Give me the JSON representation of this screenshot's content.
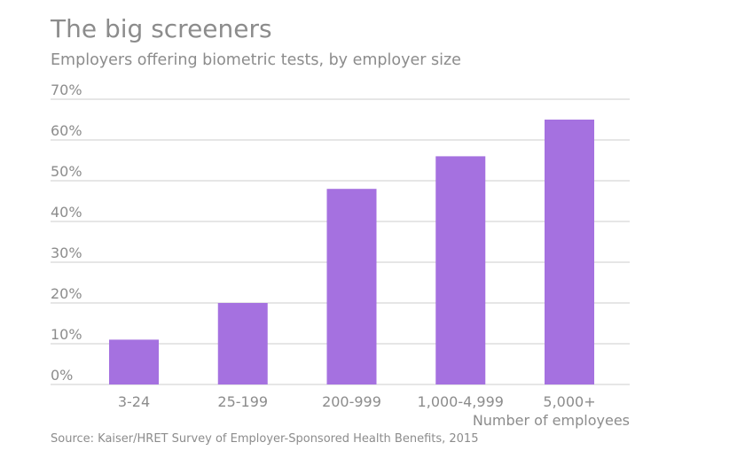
{
  "chart_data": {
    "type": "bar",
    "title": "The big screeners",
    "subtitle": "Employers offering biometric tests, by employer size",
    "categories": [
      "3-24",
      "25-199",
      "200-999",
      "1,000-4,999",
      "5,000+"
    ],
    "values": [
      11,
      20,
      48,
      56,
      65
    ],
    "xlabel": "Number of employees",
    "ylabel": "",
    "ylim": [
      0,
      70
    ],
    "yticks": [
      0,
      10,
      20,
      30,
      40,
      50,
      60,
      70
    ],
    "ytick_labels": [
      "0%",
      "10%",
      "20%",
      "30%",
      "40%",
      "50%",
      "60%",
      "70%"
    ],
    "grid": true,
    "bar_color": "#a571e0",
    "grid_color": "#cccccc",
    "text_color": "#8c8c8c",
    "source": "Source: Kaiser/HRET Survey of Employer-Sponsored Health Benefits, 2015"
  }
}
